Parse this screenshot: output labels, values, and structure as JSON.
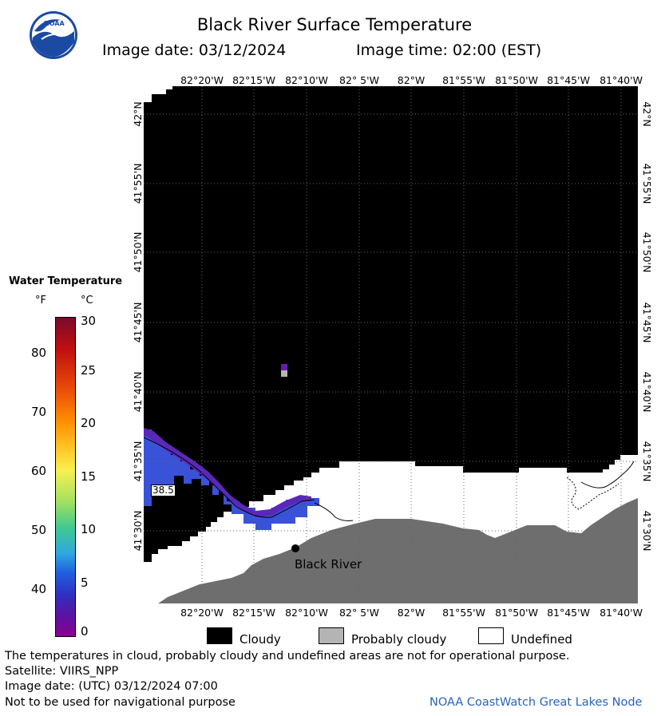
{
  "title": "Black River Surface Temperature",
  "image_date_line": "Image date: 03/12/2024",
  "image_time_line": "Image time: 02:00 (EST)",
  "logo_text": "NOAA",
  "lon_labels": [
    "82°20'W",
    "82°15'W",
    "82°10'W",
    "82° 5'W",
    "82°W",
    "81°55'W",
    "81°50'W",
    "81°45'W",
    "81°40'W"
  ],
  "lat_labels": [
    "42°N",
    "41°55'N",
    "41°50'N",
    "41°45'N",
    "41°40'N",
    "41°35'N",
    "41°30'N"
  ],
  "colorbar": {
    "title": "Water Temperature",
    "unit_f": "°F",
    "unit_c": "°C",
    "f_ticks": [
      "80",
      "70",
      "60",
      "50",
      "40"
    ],
    "c_ticks": [
      "30",
      "25",
      "20",
      "15",
      "10",
      "5",
      "0"
    ],
    "colors": [
      "#7a0a2a",
      "#c01010",
      "#e84a0a",
      "#ff8a00",
      "#ffc020",
      "#f8f050",
      "#a0e060",
      "#40c890",
      "#30a8e0",
      "#2060e0",
      "#3030c0",
      "#6010a0",
      "#8a0090"
    ]
  },
  "map": {
    "station_label": "Black River",
    "temperature_value": "38.5",
    "colors": {
      "cloudy": "#000000",
      "probably_cloudy": "#b4b4b4",
      "undefined": "#ffffff",
      "land": "#6e6e6e",
      "water_cold": "#3a52d8",
      "water_violet": "#5a28b8"
    }
  },
  "legend": {
    "cloudy": "Cloudy",
    "probably_cloudy": "Probably cloudy",
    "undefined": "Undefined"
  },
  "footer": {
    "note": "The temperatures in cloud, probably cloudy and undefined areas are not for operational purpose.",
    "satellite": "Satellite: VIIRS_NPP",
    "utc_date": "Image date: (UTC) 03/12/2024  07:00",
    "nav_warning": "Not to be used for navigational purpose",
    "credit": "NOAA CoastWatch Great Lakes Node"
  }
}
